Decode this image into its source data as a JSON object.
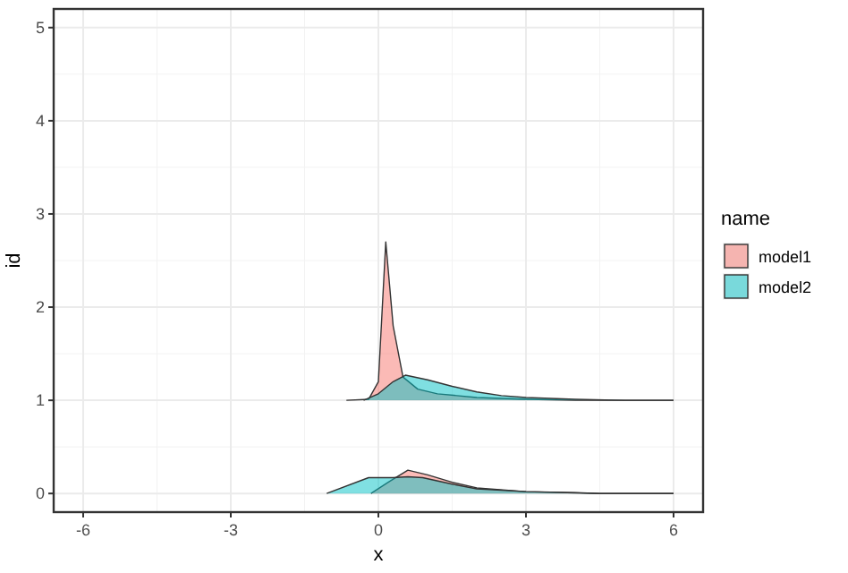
{
  "chart_data": {
    "type": "area",
    "xlabel": "x",
    "ylabel": "id",
    "legend_title": "name",
    "legend": "right",
    "grid": true,
    "xlim": [
      -6.6,
      6.6
    ],
    "xticks": [
      -6,
      -3,
      0,
      3,
      6
    ],
    "ylim": [
      -0.2,
      5.2
    ],
    "yticks": [
      0,
      1,
      2,
      3,
      4,
      5
    ],
    "series": [
      {
        "name": "model1",
        "color": "#f8766d",
        "x": [
          -0.65,
          -0.2,
          0,
          0.1,
          0.15,
          0.3,
          0.5,
          0.8,
          1.2,
          2,
          3,
          4,
          6
        ],
        "values": [
          1,
          1.01,
          1.2,
          2.2,
          2.7,
          1.8,
          1.25,
          1.12,
          1.07,
          1.03,
          1.01,
          1,
          1
        ]
      },
      {
        "name": "model2",
        "color": "#00bfc4",
        "x": [
          -0.3,
          0,
          0.3,
          0.55,
          1,
          1.5,
          2,
          2.5,
          3,
          4,
          5,
          6
        ],
        "values": [
          1,
          1.07,
          1.2,
          1.27,
          1.22,
          1.15,
          1.09,
          1.05,
          1.03,
          1.01,
          1,
          1
        ]
      },
      {
        "color": "#f9786f",
        "x": [
          -0.15,
          0.2,
          0.6,
          1,
          1.5,
          2,
          3,
          4,
          4.5,
          6
        ],
        "values": [
          0,
          0.12,
          0.25,
          0.2,
          0.12,
          0.06,
          0.02,
          0.01,
          0,
          0
        ]
      },
      {
        "color": "#02c1c6",
        "x": [
          -1.05,
          -0.2,
          0.3,
          0.6,
          0.9,
          1.5,
          2,
          3,
          4.5,
          6
        ],
        "values": [
          0,
          0.17,
          0.17,
          0.18,
          0.17,
          0.1,
          0.05,
          0.02,
          0,
          0
        ]
      }
    ]
  }
}
